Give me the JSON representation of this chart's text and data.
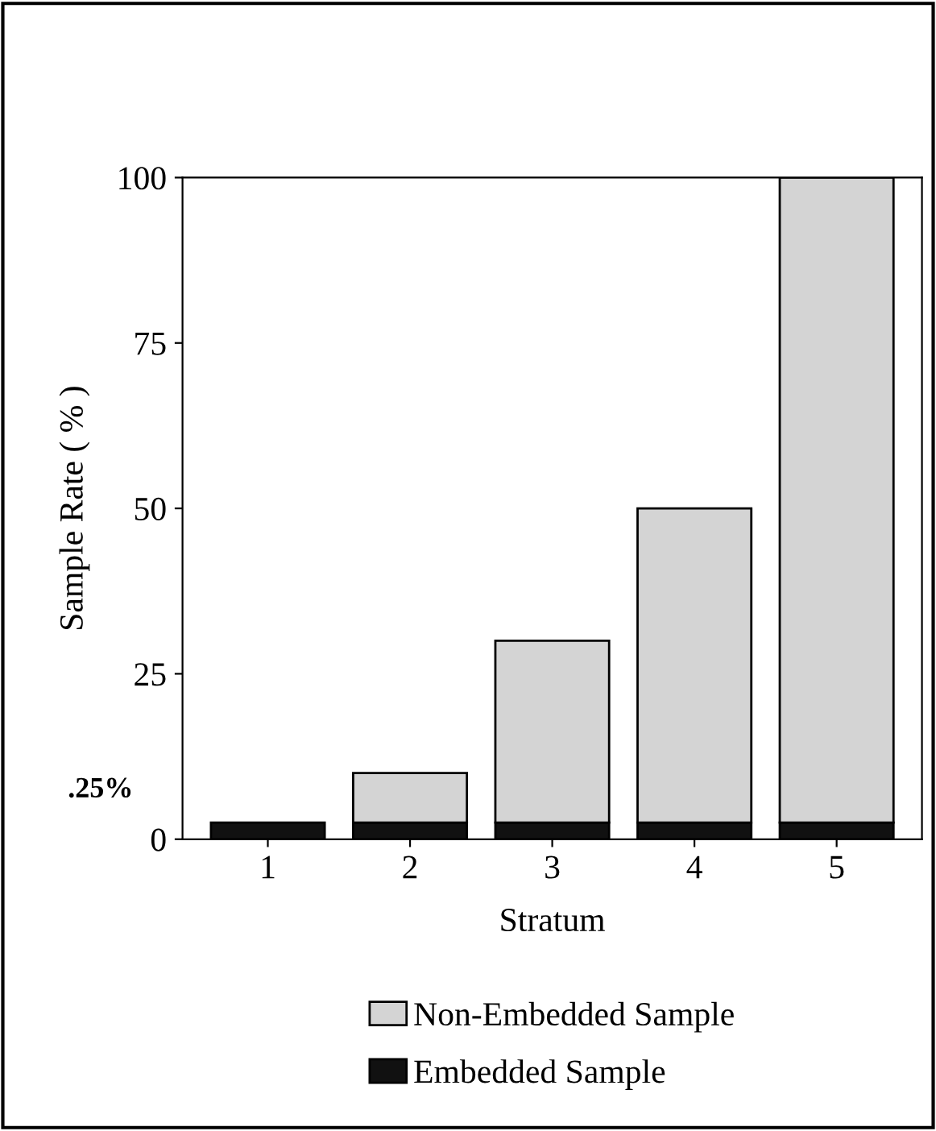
{
  "chart_data": {
    "type": "bar",
    "stacked": true,
    "xlabel": "Stratum",
    "ylabel": "Sample Rate ( % )",
    "categories": [
      "1",
      "2",
      "3",
      "4",
      "5"
    ],
    "series": [
      {
        "name": "Embedded Sample",
        "color": "#111111",
        "values": [
          2.5,
          2.5,
          2.5,
          2.5,
          2.5
        ]
      },
      {
        "name": "Non-Embedded Sample",
        "color": "#d4d4d4",
        "values": [
          null,
          7.5,
          27.5,
          47.5,
          97.5
        ]
      }
    ],
    "ylim": [
      0,
      100
    ],
    "yticks": [
      0,
      25,
      50,
      75,
      100
    ],
    "grid": false,
    "legend": "bottom",
    "annotations": [
      ".25%"
    ]
  }
}
